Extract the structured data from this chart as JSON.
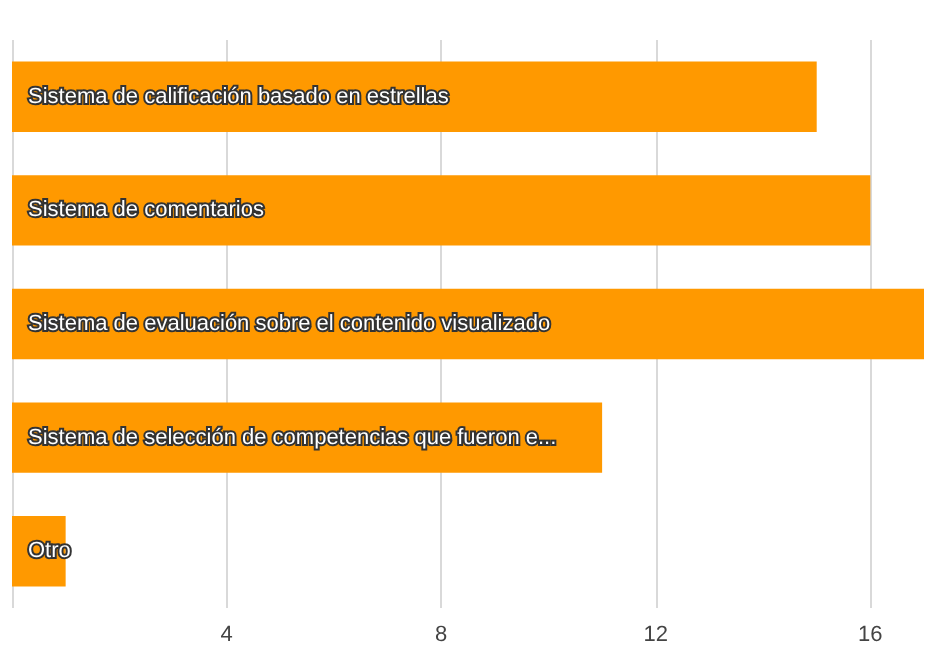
{
  "chart_data": {
    "type": "bar",
    "orientation": "horizontal",
    "categories": [
      "Sistema de calificación basado en estrellas",
      "Sistema de comentarios",
      "Sistema de evaluación sobre el contenido visualizado",
      "Sistema de selección de competencias que fueron e...",
      "Otro"
    ],
    "values": [
      15,
      16,
      17,
      11,
      1
    ],
    "color": "#ff9900",
    "xlim": [
      0,
      17
    ],
    "xticks": [
      {
        "value": 0,
        "label": null
      },
      4,
      8,
      12,
      16
    ],
    "grid": "x"
  }
}
